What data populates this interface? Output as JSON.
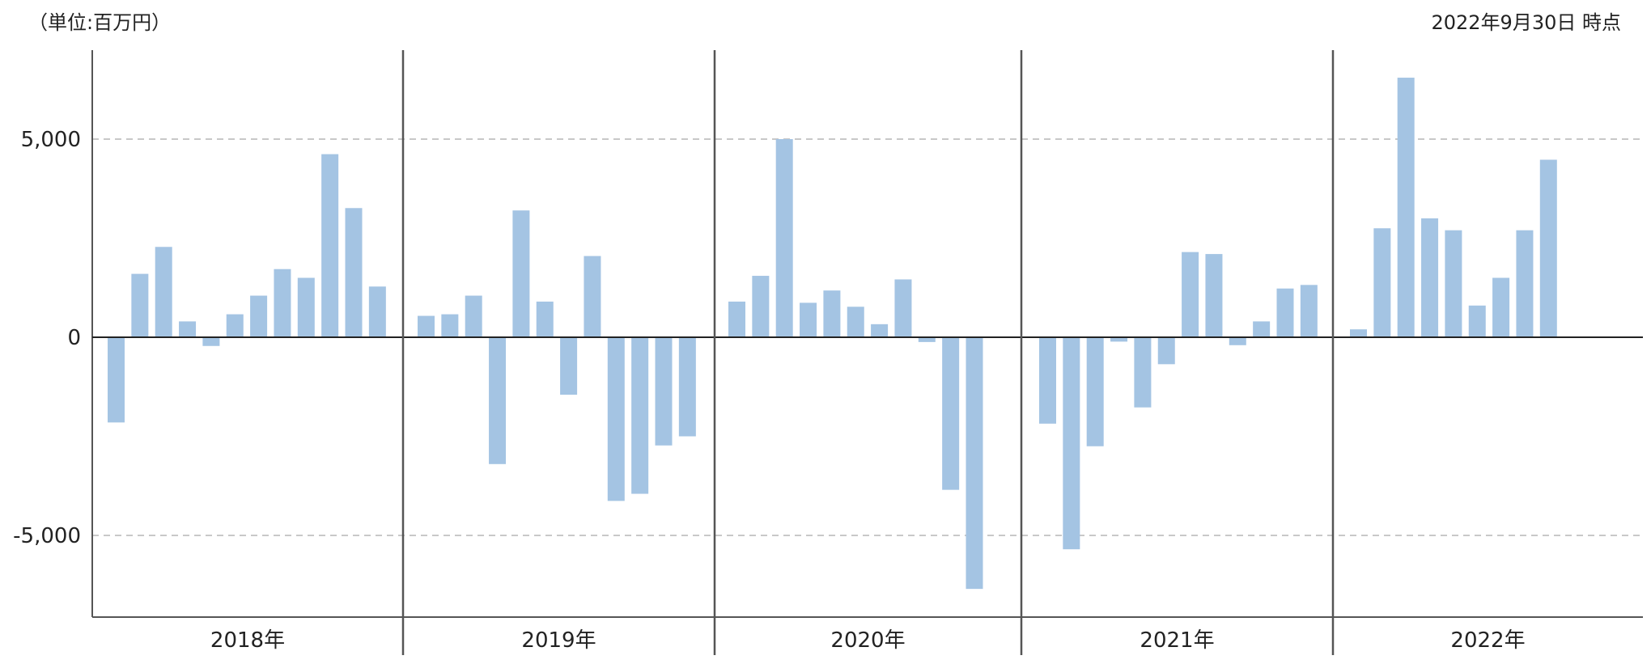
{
  "unit_label": "（単位:百万円）",
  "date_label": "2022年9月30日 時点",
  "colors": {
    "bar": "#a4c4e3",
    "negative_label": "#ff0000",
    "axis": "#555555",
    "grid": "#c8c8c8"
  },
  "chart_data": {
    "type": "bar",
    "title": "",
    "xlabel": "",
    "ylabel": "",
    "ylim": [
      -7000,
      7200
    ],
    "yticks": [
      {
        "value": 5000,
        "label": "5,000"
      },
      {
        "value": 0,
        "label": "0"
      },
      {
        "value": -5000,
        "label": "-5,000"
      }
    ],
    "grid": "dashed at ±5,000",
    "groups": [
      {
        "label": "2018年",
        "values": [
          -2150,
          1600,
          2280,
          400,
          -220,
          580,
          1050,
          1720,
          1500,
          4620,
          3260,
          1280
        ]
      },
      {
        "label": "2019年",
        "values": [
          540,
          580,
          1050,
          -3200,
          3200,
          900,
          -1450,
          2050,
          -4130,
          -3950,
          -2730,
          -2500
        ]
      },
      {
        "label": "2020年",
        "values": [
          900,
          1550,
          5000,
          870,
          1180,
          770,
          330,
          1460,
          -120,
          -3850,
          -6350
        ]
      },
      {
        "label": "2021年",
        "values": [
          -2180,
          -5350,
          -2750,
          -110,
          -1770,
          -680,
          2150,
          2100,
          -200,
          400,
          1230,
          1320
        ]
      },
      {
        "label": "2022年",
        "values": [
          200,
          2750,
          6550,
          3000,
          2700,
          800,
          1500,
          2700,
          4480
        ]
      }
    ]
  }
}
